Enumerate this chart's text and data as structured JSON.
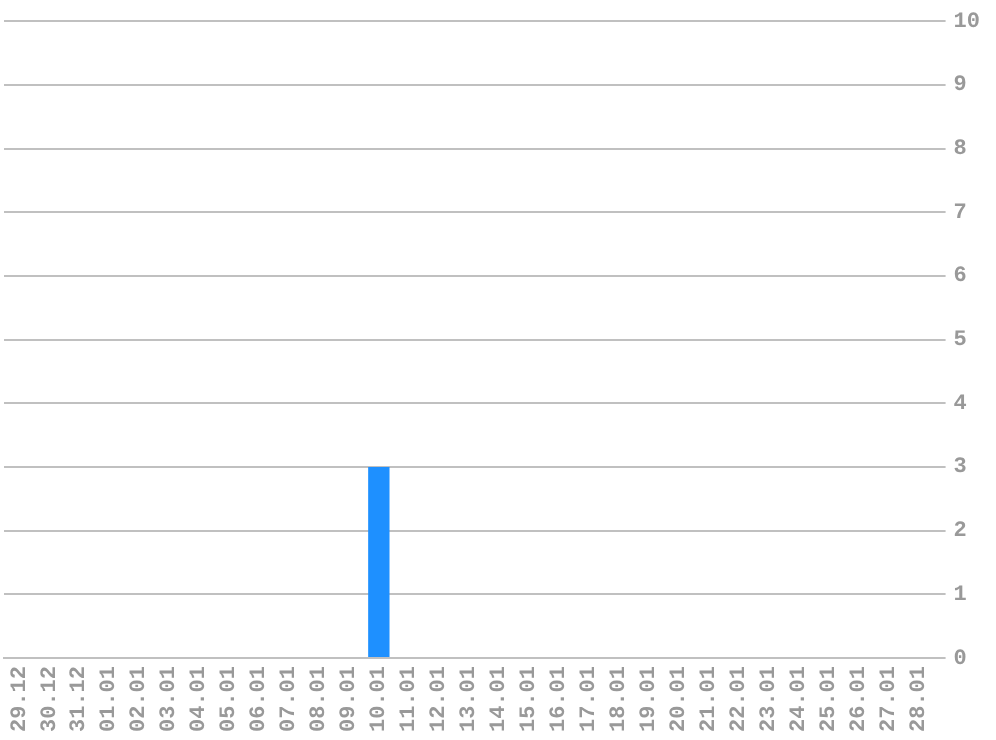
{
  "chart_data": {
    "type": "bar",
    "categories": [
      "29.12",
      "30.12",
      "31.12",
      "01.01",
      "02.01",
      "03.01",
      "04.01",
      "05.01",
      "06.01",
      "07.01",
      "08.01",
      "09.01",
      "10.01",
      "11.01",
      "12.01",
      "13.01",
      "14.01",
      "15.01",
      "16.01",
      "17.01",
      "18.01",
      "19.01",
      "20.01",
      "21.01",
      "22.01",
      "23.01",
      "24.01",
      "25.01",
      "26.01",
      "27.01",
      "28.01"
    ],
    "values": [
      0,
      0,
      0,
      0,
      0,
      0,
      0,
      0,
      0,
      0,
      0,
      0,
      3,
      0,
      0,
      0,
      0,
      0,
      0,
      0,
      0,
      0,
      0,
      0,
      0,
      0,
      0,
      0,
      0,
      0,
      0
    ],
    "color": "#1e90ff",
    "ylim": [
      0,
      10
    ],
    "yticks": [
      0,
      1,
      2,
      3,
      4,
      5,
      6,
      7,
      8,
      9,
      10
    ],
    "grid": "y",
    "legend": false
  }
}
